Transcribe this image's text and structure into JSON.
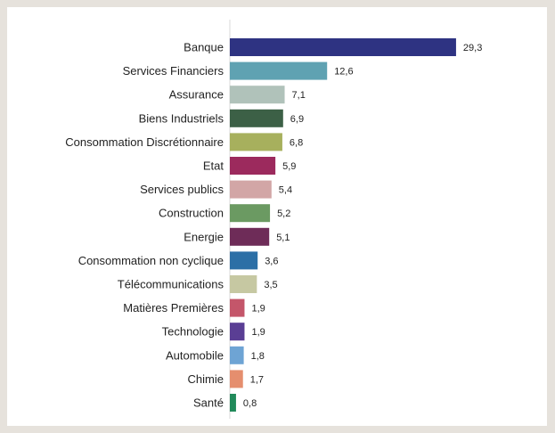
{
  "chart_data": {
    "type": "bar",
    "orientation": "horizontal",
    "categories": [
      "Banque",
      "Services Financiers",
      "Assurance",
      "Biens Industriels",
      "Consommation Discrétionnaire",
      "Etat",
      "Services publics",
      "Construction",
      "Energie",
      "Consommation non cyclique",
      "Télécommunications",
      "Matières Premières",
      "Technologie",
      "Automobile",
      "Chimie",
      "Santé"
    ],
    "values": [
      29.3,
      12.6,
      7.1,
      6.9,
      6.8,
      5.9,
      5.4,
      5.2,
      5.1,
      3.6,
      3.5,
      1.9,
      1.9,
      1.8,
      1.7,
      0.8
    ],
    "value_labels": [
      "29,3",
      "12,6",
      "7,1",
      "6,9",
      "6,8",
      "5,9",
      "5,4",
      "5,2",
      "5,1",
      "3,6",
      "3,5",
      "1,9",
      "1,9",
      "1,8",
      "1,7",
      "0,8"
    ],
    "colors": [
      "#2e3382",
      "#5fa2b2",
      "#b0c2ba",
      "#3c6046",
      "#a7b05d",
      "#9c2a5d",
      "#d2a6a6",
      "#6b9a62",
      "#6e2c58",
      "#2c6fa6",
      "#c6c8a2",
      "#c4566a",
      "#5a3e94",
      "#6ea4d4",
      "#e58e6e",
      "#218a5a"
    ],
    "xlim": [
      0,
      30
    ],
    "grid": false,
    "title": "",
    "xlabel": "",
    "ylabel": ""
  }
}
